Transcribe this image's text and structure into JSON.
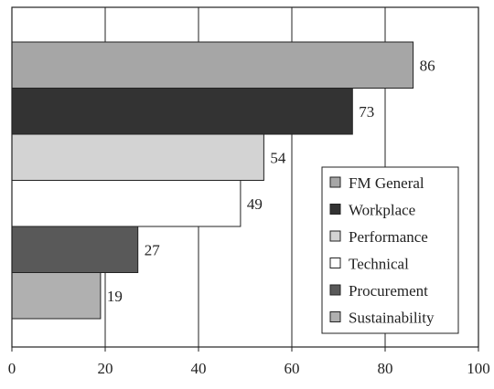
{
  "chart_data": {
    "type": "bar",
    "orientation": "horizontal",
    "categories": [
      "FM General",
      "Workplace",
      "Performance",
      "Technical",
      "Procurement",
      "Sustainability"
    ],
    "values": [
      86,
      73,
      54,
      49,
      27,
      19
    ],
    "colors": [
      "#a6a6a6",
      "#333333",
      "#d3d3d3",
      "#ffffff",
      "#595959",
      "#b0b0b0"
    ],
    "title": "",
    "xlabel": "",
    "ylabel": "",
    "xlim": [
      0,
      100
    ],
    "xticks": [
      "0",
      "20",
      "40",
      "60",
      "80",
      "100"
    ],
    "grid": "vertical",
    "legend": {
      "placement": "right",
      "entries": [
        "FM General",
        "Workplace",
        "Performance",
        "Technical",
        "Procurement",
        "Sustainability"
      ]
    }
  }
}
